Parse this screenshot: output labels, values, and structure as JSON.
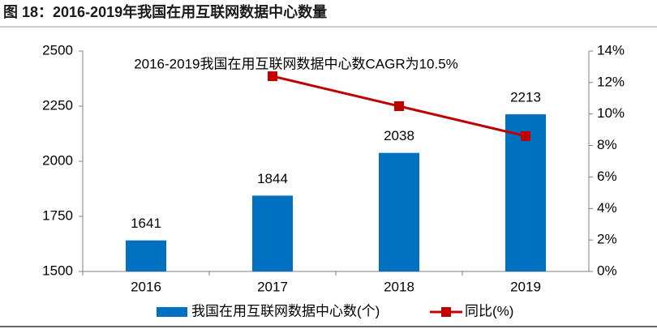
{
  "chart_data": {
    "type": "bar",
    "title": "图 18：2016-2019年我国在用互联网数据中心数量",
    "annotation": "2016-2019我国在用互联网数据中心数CAGR为10.5%",
    "categories": [
      "2016",
      "2017",
      "2018",
      "2019"
    ],
    "series": [
      {
        "name": "我国在用互联网数据中心数(个)",
        "type": "bar",
        "color": "#0070c0",
        "values": [
          1641,
          1844,
          2038,
          2213
        ],
        "show_labels": true
      },
      {
        "name": "同比(%)",
        "type": "line",
        "axis": "y2",
        "color": "#c00000",
        "values": [
          null,
          12.4,
          10.5,
          8.6
        ]
      }
    ],
    "ylim": [
      1500,
      2500
    ],
    "yticks": [
      1500,
      1750,
      2000,
      2250,
      2500
    ],
    "y2lim": [
      0,
      14
    ],
    "y2ticks": [
      {
        "value": 0,
        "label": "0%"
      },
      {
        "value": 2,
        "label": "2%"
      },
      {
        "value": 4,
        "label": "4%"
      },
      {
        "value": 6,
        "label": "6%"
      },
      {
        "value": 8,
        "label": "8%"
      },
      {
        "value": 10,
        "label": "10%"
      },
      {
        "value": 12,
        "label": "12%"
      },
      {
        "value": 14,
        "label": "14%"
      }
    ],
    "grid": false,
    "legend": "bottom"
  }
}
